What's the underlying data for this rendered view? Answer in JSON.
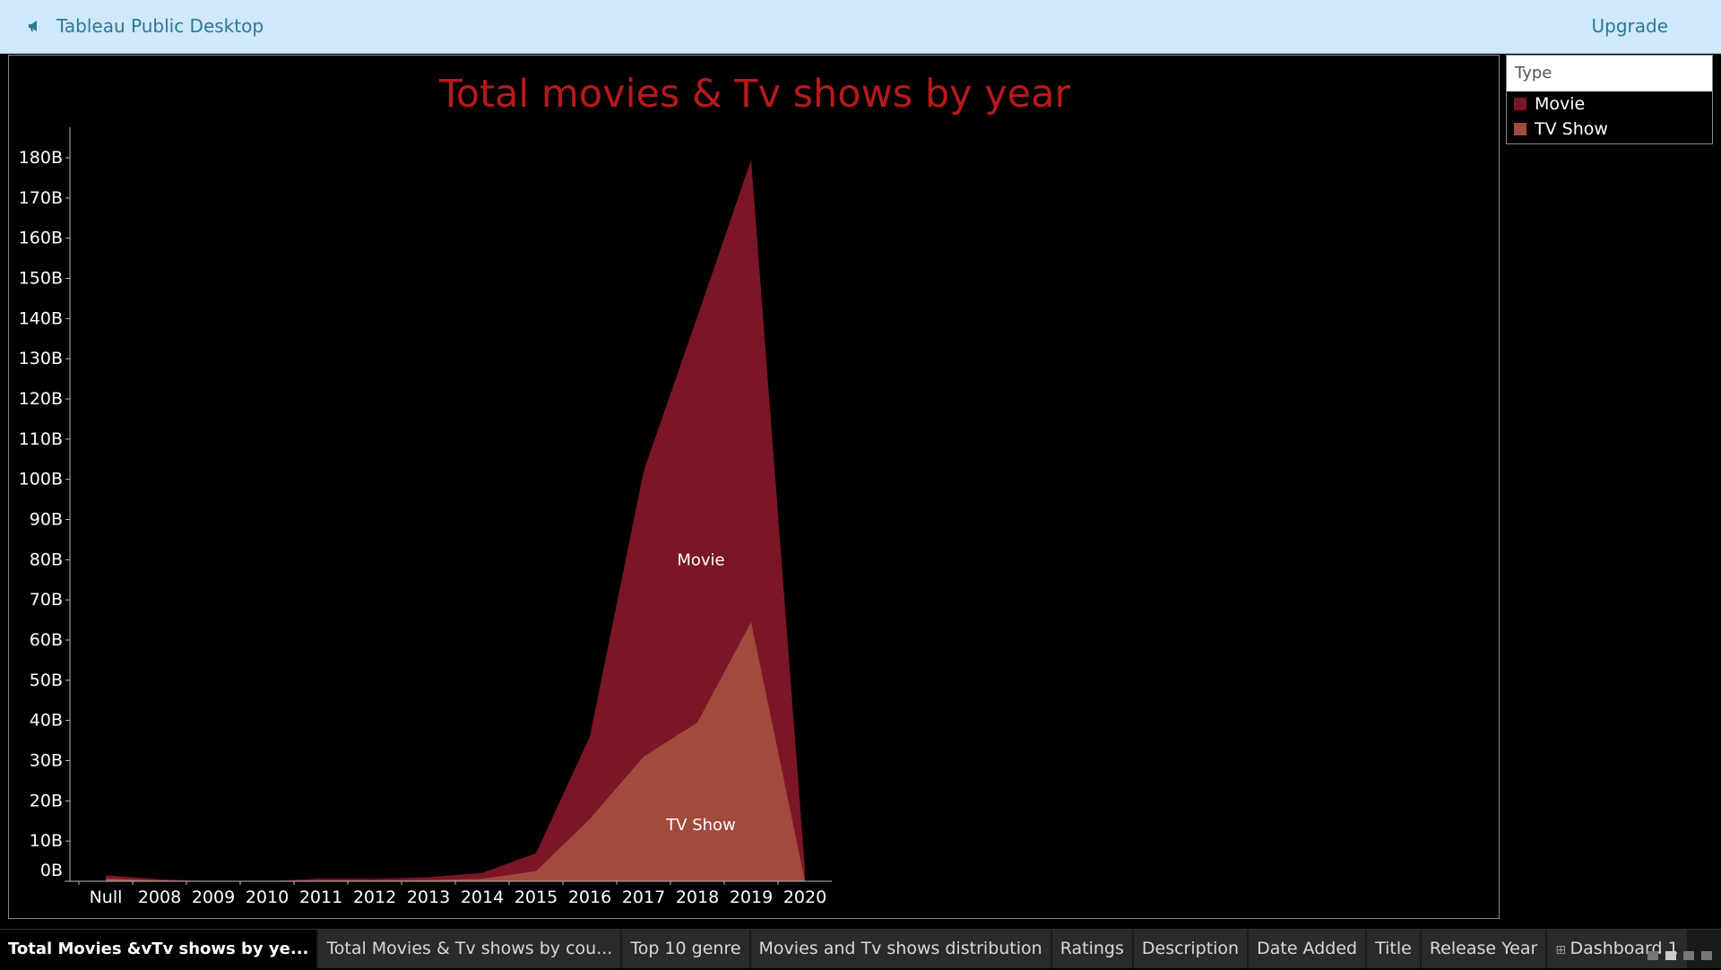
{
  "app": {
    "title": "Tableau Public Desktop",
    "upgrade_label": "Upgrade"
  },
  "legend": {
    "title": "Type",
    "items": [
      {
        "label": "Movie",
        "color": "#7a1626"
      },
      {
        "label": "TV Show",
        "color": "#a34a3e"
      }
    ]
  },
  "chart_data": {
    "type": "area",
    "title": "Total movies & Tv shows by year",
    "categories": [
      "Null",
      "2008",
      "2009",
      "2010",
      "2011",
      "2012",
      "2013",
      "2014",
      "2015",
      "2016",
      "2017",
      "2018",
      "2019",
      "2020"
    ],
    "series": [
      {
        "name": "Movie",
        "color": "#7a1626",
        "values": [
          0.8,
          0.3,
          0,
          0,
          0.5,
          0.4,
          0.7,
          1.5,
          4.5,
          20.5,
          71,
          101,
          115,
          3
        ]
      },
      {
        "name": "TV Show",
        "color": "#a34a3e",
        "values": [
          0.7,
          0.2,
          0,
          0,
          0.2,
          0.2,
          0.3,
          0.6,
          2.5,
          15.5,
          31,
          39.5,
          64.5,
          0
        ]
      }
    ],
    "series_labels": [
      {
        "text": "Movie",
        "x_index": 11.2,
        "y_value": 80
      },
      {
        "text": "TV Show",
        "x_index": 11.2,
        "y_value": 14
      }
    ],
    "stacked": true,
    "yticks": [
      "0B",
      "10B",
      "20B",
      "30B",
      "40B",
      "50B",
      "60B",
      "70B",
      "80B",
      "90B",
      "100B",
      "110B",
      "120B",
      "130B",
      "140B",
      "150B",
      "160B",
      "170B",
      "180B"
    ],
    "ylim": [
      0,
      187
    ],
    "grid": false
  },
  "tabs": [
    {
      "label": "Total Movies &vTv shows by ye...",
      "active": true
    },
    {
      "label": "Total Movies & Tv shows  by cou..."
    },
    {
      "label": "Top 10 genre"
    },
    {
      "label": "Movies and Tv shows distribution"
    },
    {
      "label": "Ratings"
    },
    {
      "label": "Description"
    },
    {
      "label": "Date Added"
    },
    {
      "label": "Title"
    },
    {
      "label": "Release Year"
    },
    {
      "label": "Dashboard 1",
      "icon": "dashboard-icon"
    }
  ]
}
